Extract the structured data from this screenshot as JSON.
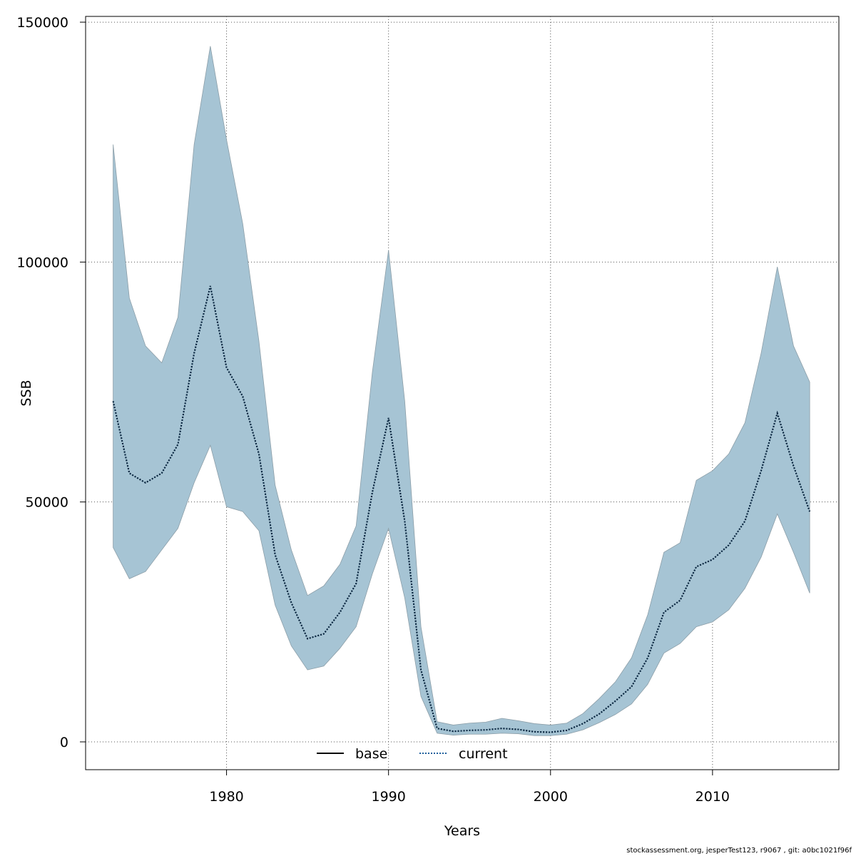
{
  "chart_data": {
    "type": "area",
    "title": "",
    "xlabel": "Years",
    "ylabel": "SSB",
    "xlim": [
      1971.3,
      2017.8
    ],
    "ylim": [
      -5800,
      151200
    ],
    "xticks": [
      1980,
      1990,
      2000,
      2010
    ],
    "yticks": [
      0,
      50000,
      100000,
      150000
    ],
    "xtick_labels": [
      "1980",
      "1990",
      "2000",
      "2010"
    ],
    "ytick_labels": [
      "0",
      "50000",
      "100000",
      "150000"
    ],
    "grid": true,
    "legend": {
      "position": "bottom-center",
      "entries": [
        "base",
        "current"
      ]
    },
    "colors": {
      "band": "#a6c4d4",
      "band_edge": "#8c9ea8",
      "current": "#0b2b48",
      "base": "#000000"
    },
    "years": [
      1973,
      1974,
      1975,
      1976,
      1977,
      1978,
      1979,
      1980,
      1981,
      1982,
      1983,
      1984,
      1985,
      1986,
      1987,
      1988,
      1989,
      1990,
      1991,
      1992,
      1993,
      1994,
      1995,
      1996,
      1997,
      1998,
      1999,
      2000,
      2001,
      2002,
      2003,
      2004,
      2005,
      2006,
      2007,
      2008,
      2009,
      2010,
      2011,
      2012,
      2013,
      2014,
      2015,
      2016
    ],
    "series": [
      {
        "name": "base",
        "values": [
          71000,
          56000,
          54000,
          56000,
          62000,
          81000,
          95000,
          78000,
          72000,
          60000,
          39000,
          29000,
          21500,
          22500,
          27000,
          33000,
          52000,
          67500,
          46000,
          15000,
          2800,
          2200,
          2400,
          2500,
          2800,
          2600,
          2100,
          2000,
          2400,
          3800,
          5800,
          8500,
          11500,
          17500,
          27000,
          29500,
          36500,
          38000,
          41000,
          46000,
          56500,
          68500,
          57500,
          48000
        ]
      },
      {
        "name": "current",
        "values": [
          71000,
          56000,
          54000,
          56000,
          62000,
          81000,
          95000,
          78000,
          72000,
          60000,
          39000,
          29000,
          21500,
          22500,
          27000,
          33000,
          52000,
          67500,
          46000,
          15000,
          2800,
          2200,
          2400,
          2500,
          2800,
          2600,
          2100,
          2000,
          2400,
          3800,
          5800,
          8500,
          11500,
          17500,
          27000,
          29500,
          36500,
          38000,
          41000,
          46000,
          56500,
          68500,
          57500,
          48000
        ]
      }
    ],
    "band": {
      "name": "confidence interval",
      "lower": [
        40500,
        34000,
        35500,
        40000,
        44500,
        54000,
        61800,
        49000,
        48000,
        44000,
        28500,
        20000,
        15000,
        15800,
        19500,
        24000,
        35000,
        44500,
        30000,
        9500,
        1800,
        1400,
        1600,
        1600,
        1800,
        1700,
        1300,
        1300,
        1600,
        2500,
        4000,
        5700,
        7900,
        12000,
        18500,
        20500,
        24000,
        25000,
        27500,
        32000,
        38500,
        47500,
        39500,
        31000
      ],
      "upper": [
        124500,
        92500,
        82500,
        79000,
        88500,
        124500,
        145000,
        125500,
        108000,
        83500,
        53500,
        40000,
        30500,
        32500,
        37000,
        45000,
        77000,
        102500,
        71000,
        24000,
        4200,
        3500,
        3900,
        4100,
        4900,
        4400,
        3800,
        3500,
        3900,
        5900,
        9000,
        12500,
        17500,
        26500,
        39500,
        41500,
        54500,
        56500,
        60000,
        66500,
        81000,
        99000,
        82500,
        75000
      ]
    }
  },
  "footer": "stockassessment.org, jesperTest123, r9067 , git: a0bc1021f96f"
}
